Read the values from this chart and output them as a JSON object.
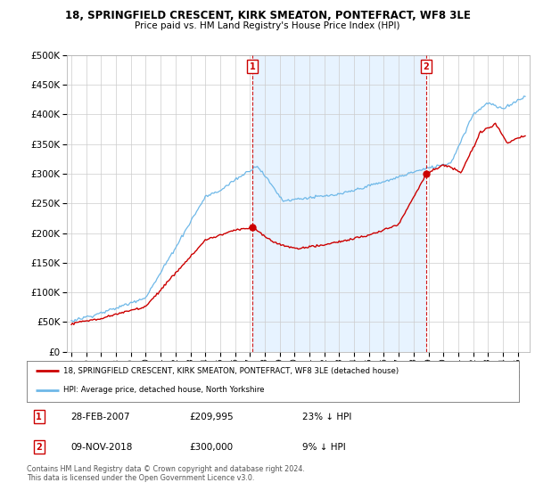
{
  "title1": "18, SPRINGFIELD CRESCENT, KIRK SMEATON, PONTEFRACT, WF8 3LE",
  "title2": "Price paid vs. HM Land Registry's House Price Index (HPI)",
  "ytick_vals": [
    0,
    50000,
    100000,
    150000,
    200000,
    250000,
    300000,
    350000,
    400000,
    450000,
    500000
  ],
  "ylim": [
    0,
    500000
  ],
  "xlim_start": 1994.7,
  "xlim_end": 2025.8,
  "xtick_years": [
    1995,
    1996,
    1997,
    1998,
    1999,
    2000,
    2001,
    2002,
    2003,
    2004,
    2005,
    2006,
    2007,
    2008,
    2009,
    2010,
    2011,
    2012,
    2013,
    2014,
    2015,
    2016,
    2017,
    2018,
    2019,
    2020,
    2021,
    2022,
    2023,
    2024,
    2025
  ],
  "hpi_color": "#6eb8e8",
  "price_color": "#cc0000",
  "annotation_color": "#cc0000",
  "fill_color": "#ddeeff",
  "sale1_x": 2007.167,
  "sale1_y": 209995,
  "sale1_label": "1",
  "sale1_date": "28-FEB-2007",
  "sale1_price": "£209,995",
  "sale1_hpi": "23% ↓ HPI",
  "sale2_x": 2018.85,
  "sale2_y": 300000,
  "sale2_label": "2",
  "sale2_date": "09-NOV-2018",
  "sale2_price": "£300,000",
  "sale2_hpi": "9% ↓ HPI",
  "legend_line1": "18, SPRINGFIELD CRESCENT, KIRK SMEATON, PONTEFRACT, WF8 3LE (detached house)",
  "legend_line2": "HPI: Average price, detached house, North Yorkshire",
  "footnote": "Contains HM Land Registry data © Crown copyright and database right 2024.\nThis data is licensed under the Open Government Licence v3.0.",
  "bg_color": "#ffffff",
  "grid_color": "#cccccc"
}
